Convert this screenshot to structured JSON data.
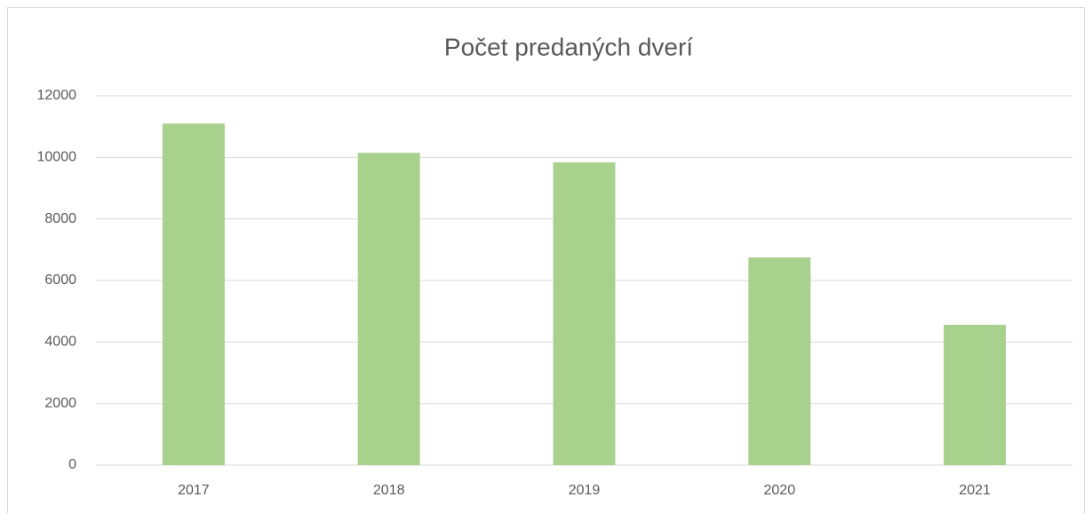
{
  "chart_data": {
    "type": "bar",
    "title": "Počet predaných dverí",
    "categories": [
      "2017",
      "2018",
      "2019",
      "2020",
      "2021"
    ],
    "values": [
      11100,
      10150,
      9840,
      6750,
      4560
    ],
    "color": "#a9d18e",
    "ylim": [
      0,
      12000
    ],
    "yticks": [
      0,
      2000,
      4000,
      6000,
      8000,
      10000,
      12000
    ],
    "grid": true
  }
}
